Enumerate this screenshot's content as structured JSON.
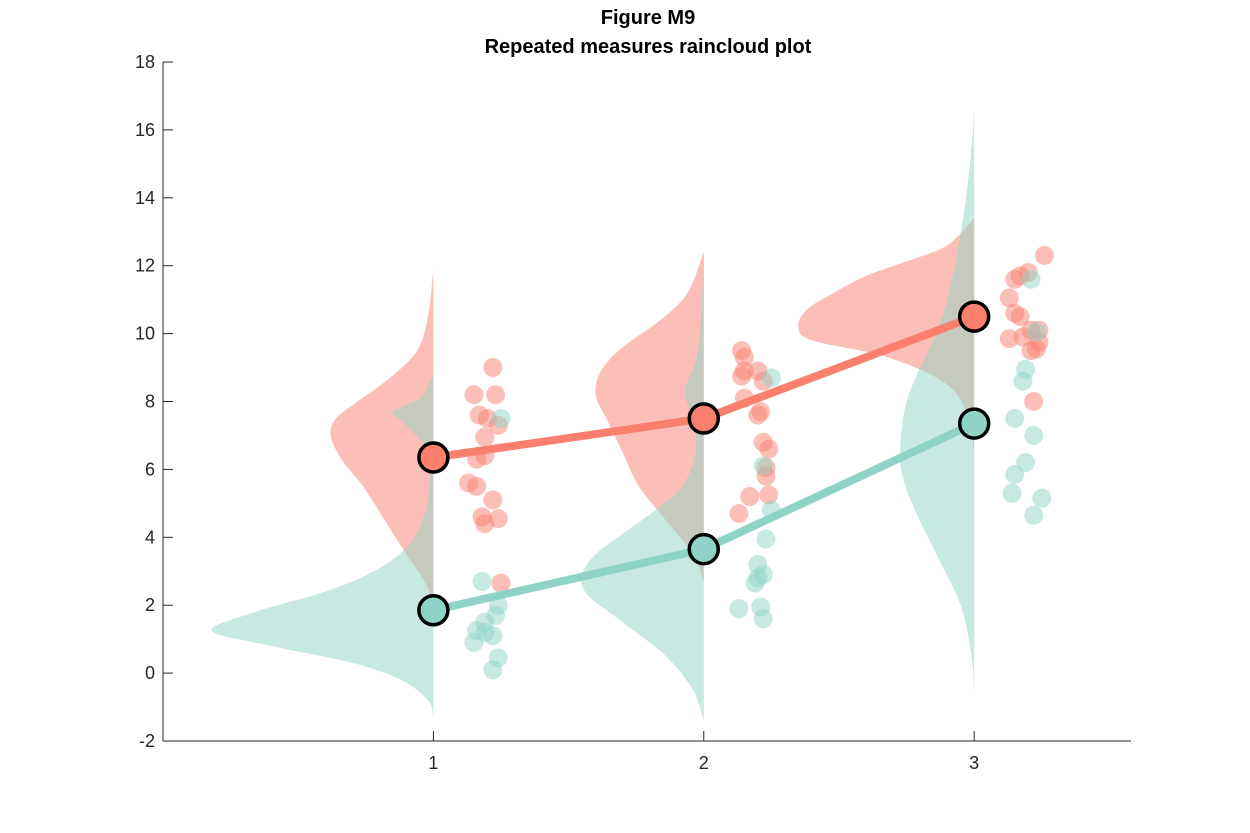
{
  "chart_data": {
    "type": "raincloud",
    "title": "Figure M9",
    "subtitle": "Repeated measures raincloud plot",
    "xlabel": "",
    "ylabel": "",
    "xlim": [
      0,
      3.58
    ],
    "ylim": [
      -2,
      18
    ],
    "x_ticks": [
      1,
      2,
      3
    ],
    "y_ticks": [
      -2,
      0,
      2,
      4,
      6,
      8,
      10,
      12,
      14,
      16,
      18
    ],
    "grid": false,
    "legend": "none",
    "colors": {
      "red": "#fa7f6f",
      "teal": "#8fd3c6",
      "outline": "#000000"
    },
    "series": [
      {
        "color": "#fa7f6f",
        "means": [
          6.35,
          7.5,
          10.5
        ],
        "density_peak_x_offset": [
          0.38,
          0.4,
          0.65
        ],
        "densities": [
          {
            "y": [
              1.6,
              2.5,
              3.5,
              4.5,
              5.5,
              6.3,
              7.0,
              7.5,
              8.0,
              8.7,
              9.5,
              10.5,
              11.9
            ],
            "w": [
              0.0,
              0.02,
              0.1,
              0.18,
              0.26,
              0.34,
              0.38,
              0.36,
              0.28,
              0.16,
              0.06,
              0.02,
              0.0
            ]
          },
          {
            "y": [
              2.7,
              3.5,
              4.5,
              5.5,
              6.5,
              7.5,
              8.2,
              8.9,
              9.6,
              10.4,
              11.2,
              12.4
            ],
            "w": [
              0.0,
              0.04,
              0.14,
              0.24,
              0.3,
              0.36,
              0.4,
              0.38,
              0.3,
              0.16,
              0.06,
              0.0
            ]
          },
          {
            "y": [
              6.5,
              7.5,
              8.5,
              9.3,
              9.8,
              10.2,
              10.7,
              11.2,
              11.7,
              12.1,
              12.6,
              13.4
            ],
            "w": [
              0.0,
              0.02,
              0.1,
              0.32,
              0.6,
              0.65,
              0.62,
              0.52,
              0.4,
              0.26,
              0.1,
              0.0
            ]
          }
        ],
        "points": [
          [
            [
              1.15,
              8.2
            ],
            [
              1.22,
              9.0
            ],
            [
              1.23,
              8.2
            ],
            [
              1.17,
              7.6
            ],
            [
              1.2,
              7.5
            ],
            [
              1.24,
              7.3
            ],
            [
              1.19,
              6.95
            ],
            [
              1.16,
              6.3
            ],
            [
              1.19,
              6.4
            ],
            [
              1.13,
              5.6
            ],
            [
              1.16,
              5.5
            ],
            [
              1.22,
              5.1
            ],
            [
              1.18,
              4.6
            ],
            [
              1.24,
              4.55
            ],
            [
              1.19,
              4.4
            ],
            [
              1.25,
              2.65
            ]
          ],
          [
            [
              2.14,
              9.5
            ],
            [
              2.15,
              9.3
            ],
            [
              2.15,
              8.9
            ],
            [
              2.2,
              8.9
            ],
            [
              2.14,
              8.75
            ],
            [
              2.22,
              8.6
            ],
            [
              2.15,
              8.1
            ],
            [
              2.21,
              7.7
            ],
            [
              2.2,
              7.6
            ],
            [
              2.22,
              6.8
            ],
            [
              2.24,
              6.6
            ],
            [
              2.23,
              6.05
            ],
            [
              2.23,
              5.8
            ],
            [
              2.24,
              5.25
            ],
            [
              2.17,
              5.2
            ],
            [
              2.13,
              4.7
            ]
          ],
          [
            [
              3.26,
              12.3
            ],
            [
              3.2,
              11.8
            ],
            [
              3.17,
              11.7
            ],
            [
              3.15,
              11.6
            ],
            [
              3.13,
              11.05
            ],
            [
              3.15,
              10.6
            ],
            [
              3.17,
              10.5
            ],
            [
              3.21,
              10.1
            ],
            [
              3.24,
              10.1
            ],
            [
              3.18,
              9.9
            ],
            [
              3.13,
              9.85
            ],
            [
              3.24,
              9.75
            ],
            [
              3.21,
              9.5
            ],
            [
              3.23,
              9.55
            ],
            [
              3.22,
              8.0
            ]
          ]
        ]
      },
      {
        "color": "#8fd3c6",
        "means": [
          1.85,
          3.65,
          7.35
        ],
        "density_peak_x_offset": [
          0.82,
          0.45,
          0.28
        ],
        "densities": [
          {
            "y": [
              -1.3,
              -0.8,
              -0.2,
              0.3,
              0.8,
              1.25,
              1.8,
              2.4,
              3.0,
              3.7,
              4.5,
              5.5,
              6.5,
              7.3,
              7.7,
              8.1,
              8.8
            ],
            "w": [
              0.0,
              0.02,
              0.12,
              0.3,
              0.6,
              0.82,
              0.66,
              0.4,
              0.22,
              0.1,
              0.04,
              0.015,
              0.02,
              0.1,
              0.15,
              0.05,
              0.0
            ]
          },
          {
            "y": [
              -1.4,
              -0.5,
              0.5,
              1.5,
              2.3,
              2.9,
              3.5,
              4.1,
              4.8,
              5.5,
              6.5,
              7.5,
              8.3,
              9.2,
              10.5,
              12.5
            ],
            "w": [
              0.0,
              0.04,
              0.14,
              0.3,
              0.43,
              0.45,
              0.4,
              0.3,
              0.18,
              0.08,
              0.03,
              0.04,
              0.07,
              0.03,
              0.01,
              0.0
            ]
          },
          {
            "y": [
              -0.6,
              0.5,
              2.0,
              3.5,
              5.0,
              6.0,
              7.0,
              8.0,
              9.0,
              10.0,
              11.0,
              12.5,
              14.0,
              15.5,
              16.6
            ],
            "w": [
              0.0,
              0.01,
              0.05,
              0.14,
              0.23,
              0.27,
              0.27,
              0.25,
              0.2,
              0.14,
              0.1,
              0.06,
              0.03,
              0.01,
              0.0
            ]
          }
        ],
        "points": [
          [
            [
              1.25,
              7.5
            ],
            [
              1.18,
              2.7
            ],
            [
              1.24,
              2.0
            ],
            [
              1.19,
              1.5
            ],
            [
              1.23,
              1.7
            ],
            [
              1.16,
              1.25
            ],
            [
              1.22,
              1.1
            ],
            [
              1.19,
              1.2
            ],
            [
              1.15,
              0.9
            ],
            [
              1.24,
              0.45
            ],
            [
              1.22,
              0.1
            ]
          ],
          [
            [
              2.25,
              8.7
            ],
            [
              2.22,
              6.1
            ],
            [
              2.25,
              4.8
            ],
            [
              2.23,
              3.95
            ],
            [
              2.2,
              3.2
            ],
            [
              2.22,
              2.9
            ],
            [
              2.2,
              2.8
            ],
            [
              2.19,
              2.65
            ],
            [
              2.13,
              1.9
            ],
            [
              2.21,
              1.95
            ],
            [
              2.22,
              1.6
            ]
          ],
          [
            [
              3.21,
              11.6
            ],
            [
              3.23,
              10.05
            ],
            [
              3.19,
              8.95
            ],
            [
              3.18,
              8.6
            ],
            [
              3.15,
              7.5
            ],
            [
              3.22,
              7.0
            ],
            [
              3.19,
              6.2
            ],
            [
              3.15,
              5.85
            ],
            [
              3.25,
              5.15
            ],
            [
              3.14,
              5.3
            ],
            [
              3.22,
              4.65
            ]
          ]
        ]
      }
    ]
  }
}
